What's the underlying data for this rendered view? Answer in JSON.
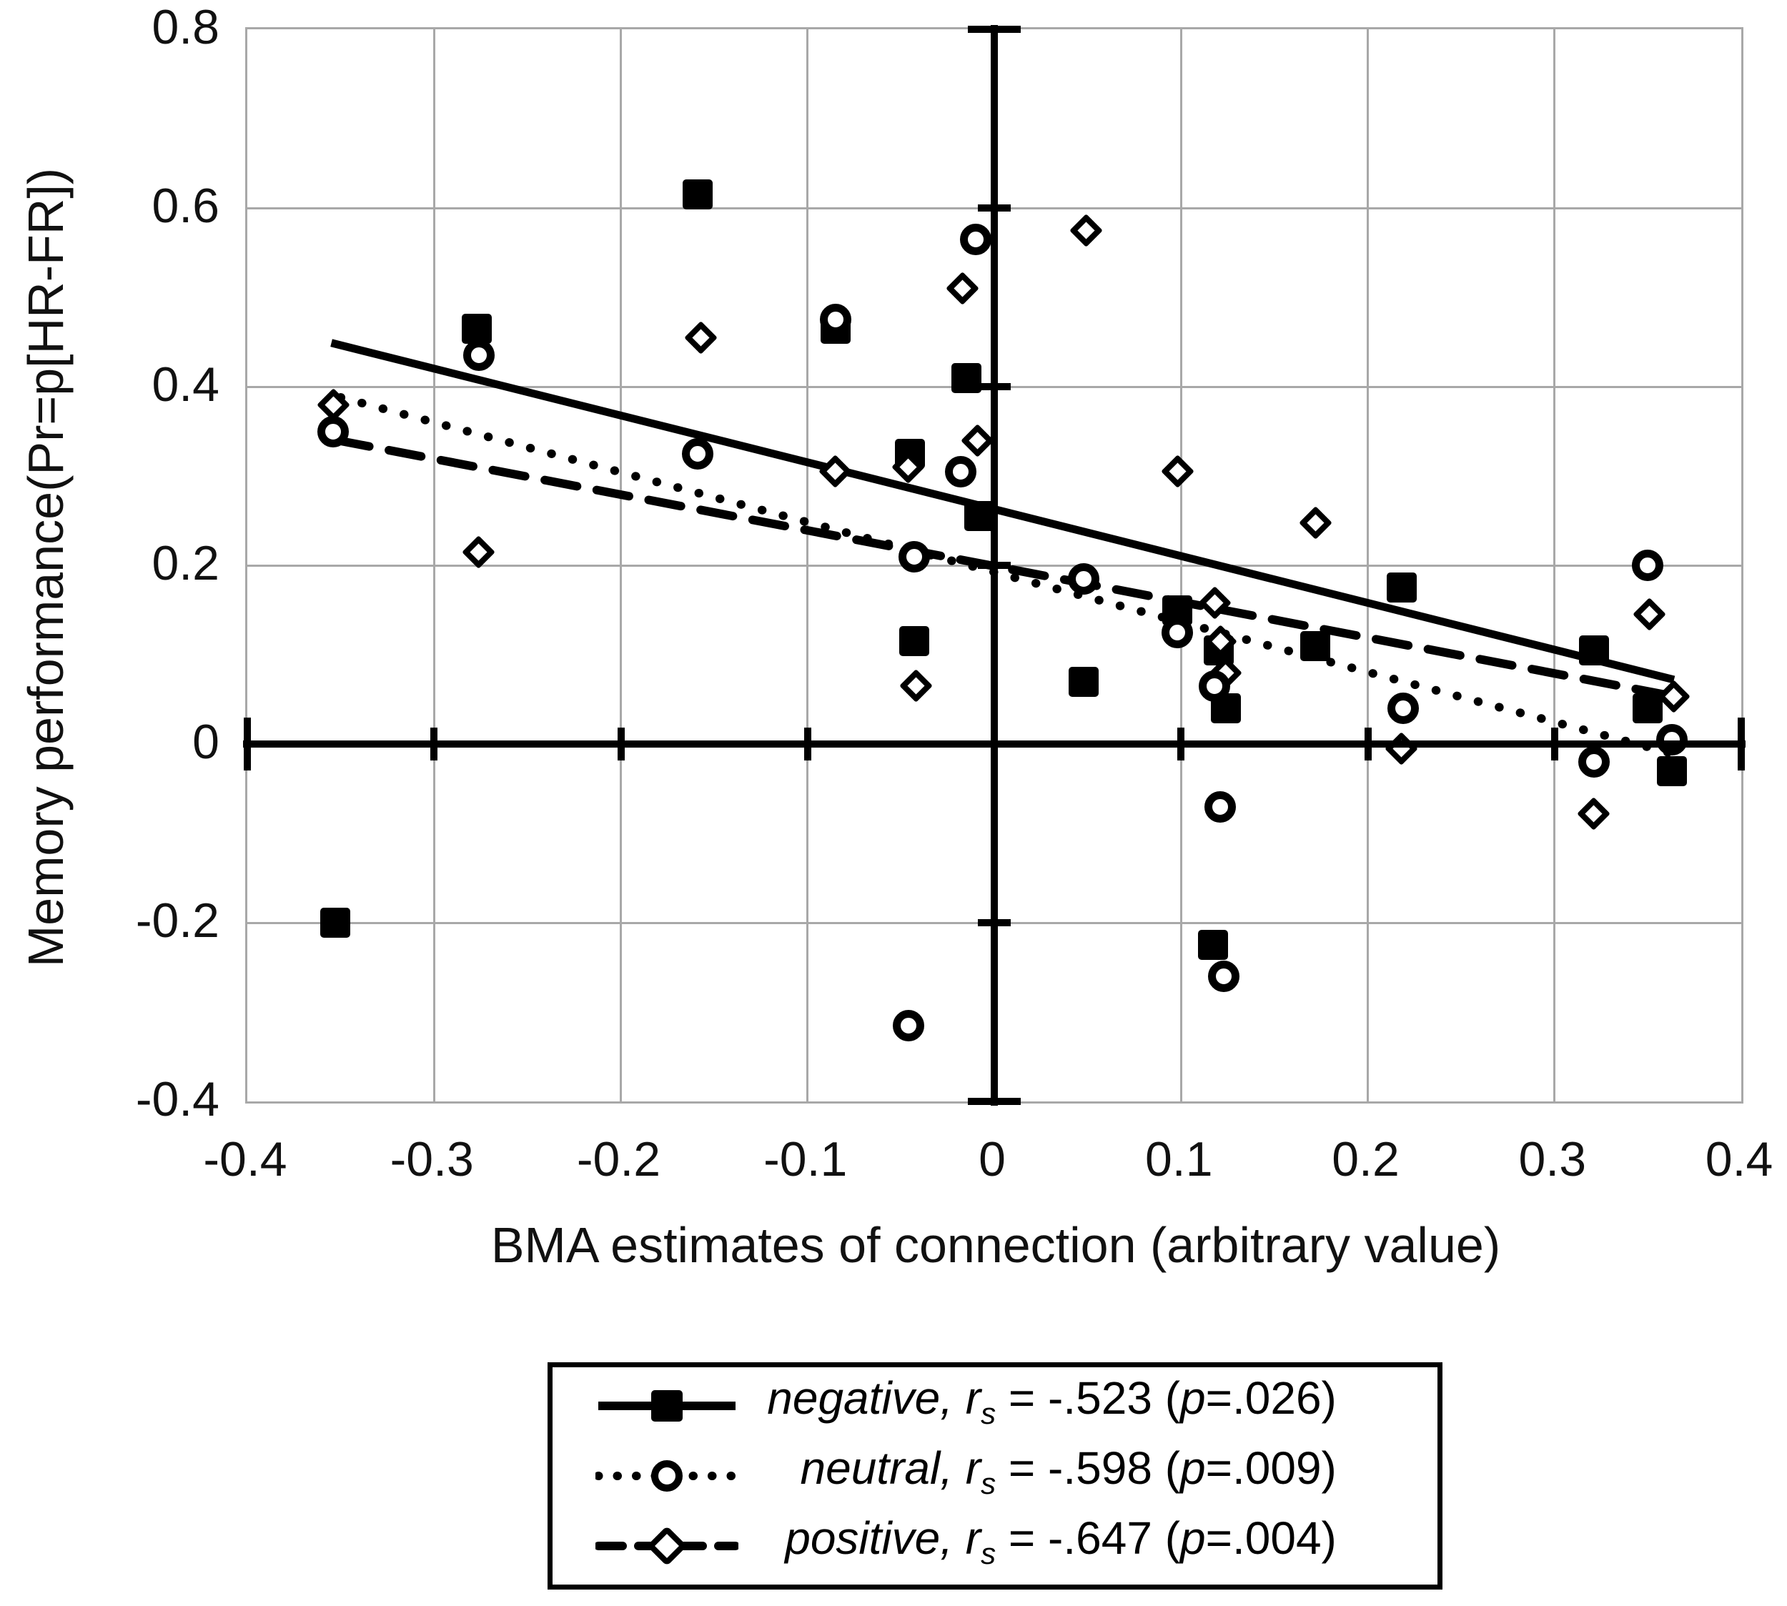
{
  "figure": {
    "background": "#ffffff",
    "ink_color": "#000000",
    "grid_color": "#a8a8a8"
  },
  "chart_data": {
    "type": "scatter",
    "title": "",
    "xlabel": "BMA estimates of connection (arbitrary value)",
    "ylabel": "Memory performance(Pr=p[HR-FR])",
    "xlim": [
      -0.4,
      0.4
    ],
    "ylim": [
      -0.4,
      0.8
    ],
    "grid": true,
    "legend_position": "bottom",
    "x_tick_labels": [
      "-0.4",
      "-0.3",
      "-0.2",
      "-0.1",
      "0",
      "0.1",
      "0.2",
      "0.3",
      "0.4"
    ],
    "x_tick_values": [
      -0.4,
      -0.3,
      -0.2,
      -0.1,
      0,
      0.1,
      0.2,
      0.3,
      0.4
    ],
    "y_tick_labels": [
      "0.8",
      "0.6",
      "0.4",
      "0.2",
      "0",
      "-0.2",
      "-0.4"
    ],
    "y_tick_values": [
      0.8,
      0.6,
      0.4,
      0.2,
      0,
      -0.2,
      -0.4
    ],
    "series": [
      {
        "name": "negative",
        "marker": "filled-square",
        "line_style": "solid",
        "legend": {
          "name": "negative,",
          "r_symbol": "r",
          "r_sub": "s",
          "mid": " = ",
          "r_value": "-.523",
          "paren_open": " (",
          "p_symbol": "p",
          "p_equals": "=",
          "p_value": ".026",
          "paren_close": ")"
        },
        "points": [
          [
            -0.353,
            -0.2
          ],
          [
            -0.277,
            0.465
          ],
          [
            -0.159,
            0.615
          ],
          [
            -0.085,
            0.465
          ],
          [
            -0.045,
            0.325
          ],
          [
            -0.043,
            0.115
          ],
          [
            -0.015,
            0.41
          ],
          [
            -0.008,
            0.255
          ],
          [
            0.048,
            0.07
          ],
          [
            0.098,
            0.15
          ],
          [
            0.117,
            -0.225
          ],
          [
            0.12,
            0.105
          ],
          [
            0.124,
            0.04
          ],
          [
            0.172,
            0.11
          ],
          [
            0.218,
            0.175
          ],
          [
            0.321,
            0.105
          ],
          [
            0.35,
            0.04
          ],
          [
            0.363,
            -0.03
          ]
        ],
        "trendline": [
          [
            -0.355,
            0.449
          ],
          [
            0.364,
            0.072
          ]
        ]
      },
      {
        "name": "neutral",
        "marker": "open-circle",
        "line_style": "dotted",
        "legend": {
          "name": "neutral,",
          "r_symbol": "r",
          "r_sub": "s",
          "mid": " = ",
          "r_value": "-.598",
          "paren_open": " (",
          "p_symbol": "p",
          "p_equals": "=",
          "p_value": ".009",
          "paren_close": ")"
        },
        "points": [
          [
            -0.354,
            0.35
          ],
          [
            -0.276,
            0.435
          ],
          [
            -0.159,
            0.325
          ],
          [
            -0.085,
            0.475
          ],
          [
            -0.046,
            -0.315
          ],
          [
            -0.043,
            0.21
          ],
          [
            -0.018,
            0.305
          ],
          [
            -0.01,
            0.565
          ],
          [
            0.048,
            0.185
          ],
          [
            0.098,
            0.125
          ],
          [
            0.118,
            0.065
          ],
          [
            0.121,
            -0.07
          ],
          [
            0.123,
            -0.26
          ],
          [
            0.219,
            0.04
          ],
          [
            0.321,
            -0.02
          ],
          [
            0.35,
            0.2
          ],
          [
            0.363,
            0.005
          ]
        ],
        "trendline": [
          [
            -0.35,
            0.388
          ],
          [
            0.362,
            -0.01
          ]
        ]
      },
      {
        "name": "positive",
        "marker": "open-diamond",
        "line_style": "dashed",
        "legend": {
          "name": "positive,",
          "r_symbol": "r",
          "r_sub": "s",
          "mid": " = ",
          "r_value": "-.647",
          "paren_open": " (",
          "p_symbol": "p",
          "p_equals": "=",
          "p_value": ".004",
          "paren_close": ")"
        },
        "points": [
          [
            -0.354,
            0.38
          ],
          [
            -0.276,
            0.215
          ],
          [
            -0.157,
            0.455
          ],
          [
            -0.085,
            0.305
          ],
          [
            -0.046,
            0.31
          ],
          [
            -0.042,
            0.065
          ],
          [
            -0.017,
            0.51
          ],
          [
            -0.009,
            0.34
          ],
          [
            0.049,
            0.575
          ],
          [
            0.098,
            0.305
          ],
          [
            0.118,
            0.158
          ],
          [
            0.121,
            0.115
          ],
          [
            0.124,
            0.08
          ],
          [
            0.172,
            0.248
          ],
          [
            0.218,
            -0.005
          ],
          [
            0.321,
            -0.078
          ],
          [
            0.351,
            0.145
          ],
          [
            0.364,
            0.053
          ]
        ],
        "trendline": [
          [
            -0.352,
            0.34
          ],
          [
            0.36,
            0.055
          ]
        ]
      }
    ]
  }
}
